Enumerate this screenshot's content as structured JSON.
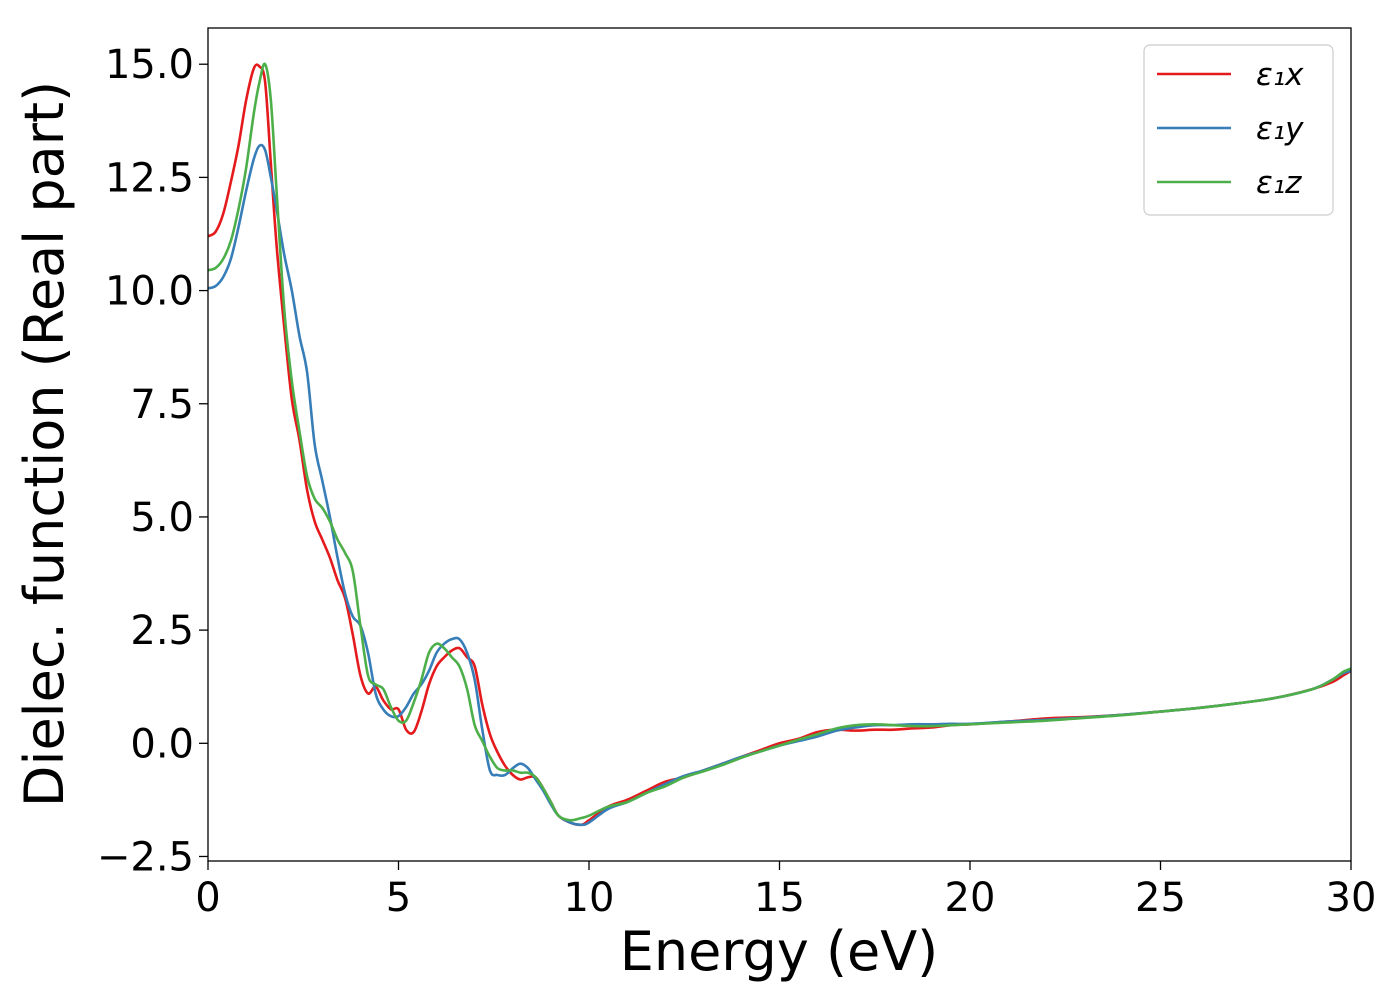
{
  "chart_data": {
    "type": "line",
    "title": "",
    "xlabel": "Energy (eV)",
    "ylabel": "Dielec. function (Real part)",
    "xlim": [
      0,
      30
    ],
    "ylim": [
      -2.6,
      15.8
    ],
    "grid": false,
    "legend_position": "top-right",
    "x_ticks": [
      0,
      5,
      10,
      15,
      20,
      25,
      30
    ],
    "y_ticks": [
      -2.5,
      0.0,
      2.5,
      5.0,
      7.5,
      10.0,
      12.5,
      15.0
    ],
    "x_tick_labels": [
      "0",
      "5",
      "10",
      "15",
      "20",
      "25",
      "30"
    ],
    "y_tick_labels": [
      "−2.5",
      "0.0",
      "2.5",
      "5.0",
      "7.5",
      "10.0",
      "12.5",
      "15.0"
    ],
    "series": [
      {
        "name": "ε₁x",
        "color": "#e41a1c",
        "x": [
          0,
          0.2,
          0.4,
          0.6,
          0.8,
          1.0,
          1.2,
          1.35,
          1.5,
          1.65,
          1.8,
          2.0,
          2.2,
          2.4,
          2.6,
          2.8,
          3.0,
          3.2,
          3.4,
          3.6,
          3.8,
          4.0,
          4.2,
          4.4,
          4.6,
          4.8,
          5.0,
          5.2,
          5.4,
          5.6,
          5.8,
          6.0,
          6.2,
          6.4,
          6.6,
          6.8,
          7.0,
          7.2,
          7.4,
          7.6,
          7.8,
          8.0,
          8.2,
          8.4,
          8.6,
          8.8,
          9.0,
          9.2,
          9.5,
          9.8,
          10.0,
          10.5,
          11.0,
          11.5,
          12.0,
          12.5,
          13.0,
          13.5,
          14.0,
          14.5,
          15.0,
          15.5,
          16.0,
          16.5,
          17.0,
          17.5,
          18.0,
          18.5,
          19.0,
          19.5,
          20.0,
          21.0,
          22.0,
          23.0,
          24.0,
          25.0,
          26.0,
          27.0,
          28.0,
          29.0,
          29.5,
          29.8,
          30.0
        ],
        "y": [
          11.2,
          11.3,
          11.7,
          12.4,
          13.2,
          14.2,
          14.9,
          14.95,
          14.6,
          12.8,
          11.0,
          9.2,
          7.6,
          6.7,
          5.6,
          4.9,
          4.5,
          4.1,
          3.6,
          3.2,
          2.4,
          1.5,
          1.1,
          1.25,
          0.95,
          0.75,
          0.75,
          0.3,
          0.25,
          0.7,
          1.3,
          1.7,
          1.9,
          2.05,
          2.1,
          1.9,
          1.7,
          0.85,
          0.2,
          -0.2,
          -0.5,
          -0.7,
          -0.8,
          -0.75,
          -0.75,
          -1.0,
          -1.3,
          -1.6,
          -1.75,
          -1.8,
          -1.7,
          -1.4,
          -1.25,
          -1.05,
          -0.85,
          -0.75,
          -0.6,
          -0.45,
          -0.3,
          -0.15,
          -0.0,
          0.1,
          0.25,
          0.3,
          0.28,
          0.3,
          0.3,
          0.33,
          0.35,
          0.4,
          0.42,
          0.48,
          0.55,
          0.58,
          0.63,
          0.7,
          0.78,
          0.88,
          1.0,
          1.2,
          1.35,
          1.5,
          1.6
        ]
      },
      {
        "name": "ε₁y",
        "color": "#377eb8",
        "x": [
          0,
          0.2,
          0.4,
          0.6,
          0.8,
          1.0,
          1.2,
          1.35,
          1.5,
          1.65,
          1.8,
          2.0,
          2.2,
          2.4,
          2.6,
          2.8,
          3.0,
          3.2,
          3.4,
          3.6,
          3.8,
          4.0,
          4.2,
          4.4,
          4.6,
          4.8,
          5.0,
          5.2,
          5.4,
          5.6,
          5.8,
          6.0,
          6.2,
          6.4,
          6.6,
          6.8,
          7.0,
          7.2,
          7.4,
          7.6,
          7.8,
          8.0,
          8.2,
          8.4,
          8.6,
          8.8,
          9.0,
          9.2,
          9.5,
          9.8,
          10.0,
          10.5,
          11.0,
          11.5,
          12.0,
          12.5,
          13.0,
          13.5,
          14.0,
          14.5,
          15.0,
          15.5,
          16.0,
          16.5,
          17.0,
          17.5,
          18.0,
          18.5,
          19.0,
          19.5,
          20.0,
          21.0,
          22.0,
          23.0,
          24.0,
          25.0,
          26.0,
          27.0,
          28.0,
          29.0,
          29.5,
          29.8,
          30.0
        ],
        "y": [
          10.05,
          10.1,
          10.3,
          10.7,
          11.4,
          12.2,
          12.9,
          13.2,
          13.1,
          12.5,
          11.8,
          10.8,
          10.0,
          9.0,
          8.2,
          6.6,
          5.8,
          5.0,
          4.1,
          3.3,
          2.8,
          2.6,
          2.0,
          1.1,
          0.75,
          0.6,
          0.6,
          0.8,
          1.1,
          1.3,
          1.6,
          2.0,
          2.2,
          2.3,
          2.3,
          2.0,
          1.4,
          0.3,
          -0.6,
          -0.7,
          -0.7,
          -0.55,
          -0.45,
          -0.55,
          -0.8,
          -1.05,
          -1.35,
          -1.6,
          -1.75,
          -1.8,
          -1.75,
          -1.45,
          -1.3,
          -1.1,
          -0.9,
          -0.72,
          -0.6,
          -0.45,
          -0.3,
          -0.18,
          -0.05,
          0.05,
          0.15,
          0.28,
          0.35,
          0.4,
          0.4,
          0.42,
          0.42,
          0.43,
          0.43,
          0.48,
          0.52,
          0.57,
          0.63,
          0.7,
          0.78,
          0.88,
          1.0,
          1.2,
          1.4,
          1.55,
          1.6
        ]
      },
      {
        "name": "ε₁z",
        "color": "#4daf4a",
        "x": [
          0,
          0.2,
          0.4,
          0.6,
          0.8,
          1.0,
          1.2,
          1.35,
          1.5,
          1.65,
          1.8,
          2.0,
          2.2,
          2.4,
          2.6,
          2.8,
          3.0,
          3.2,
          3.4,
          3.6,
          3.8,
          4.0,
          4.2,
          4.4,
          4.6,
          4.8,
          5.0,
          5.2,
          5.4,
          5.6,
          5.8,
          6.0,
          6.2,
          6.4,
          6.6,
          6.8,
          7.0,
          7.2,
          7.4,
          7.6,
          7.8,
          8.0,
          8.2,
          8.4,
          8.6,
          8.8,
          9.0,
          9.2,
          9.5,
          9.8,
          10.0,
          10.5,
          11.0,
          11.5,
          12.0,
          12.5,
          13.0,
          13.5,
          14.0,
          14.5,
          15.0,
          15.5,
          16.0,
          16.5,
          17.0,
          17.5,
          18.0,
          18.5,
          19.0,
          19.5,
          20.0,
          21.0,
          22.0,
          23.0,
          24.0,
          25.0,
          26.0,
          27.0,
          28.0,
          29.0,
          29.5,
          29.8,
          30.0
        ],
        "y": [
          10.45,
          10.5,
          10.7,
          11.1,
          11.8,
          12.7,
          13.9,
          14.6,
          15.0,
          14.2,
          12.2,
          9.6,
          8.0,
          6.9,
          5.9,
          5.4,
          5.2,
          4.9,
          4.5,
          4.2,
          3.8,
          2.6,
          1.5,
          1.3,
          1.2,
          0.8,
          0.5,
          0.5,
          0.9,
          1.4,
          2.0,
          2.2,
          2.1,
          1.9,
          1.7,
          1.2,
          0.4,
          0.05,
          -0.3,
          -0.55,
          -0.6,
          -0.6,
          -0.65,
          -0.65,
          -0.75,
          -1.0,
          -1.3,
          -1.6,
          -1.7,
          -1.65,
          -1.6,
          -1.4,
          -1.3,
          -1.1,
          -0.95,
          -0.75,
          -0.62,
          -0.48,
          -0.32,
          -0.18,
          -0.05,
          0.08,
          0.2,
          0.33,
          0.4,
          0.42,
          0.4,
          0.38,
          0.38,
          0.4,
          0.42,
          0.46,
          0.5,
          0.56,
          0.62,
          0.7,
          0.78,
          0.88,
          1.0,
          1.2,
          1.4,
          1.58,
          1.65
        ]
      }
    ]
  }
}
